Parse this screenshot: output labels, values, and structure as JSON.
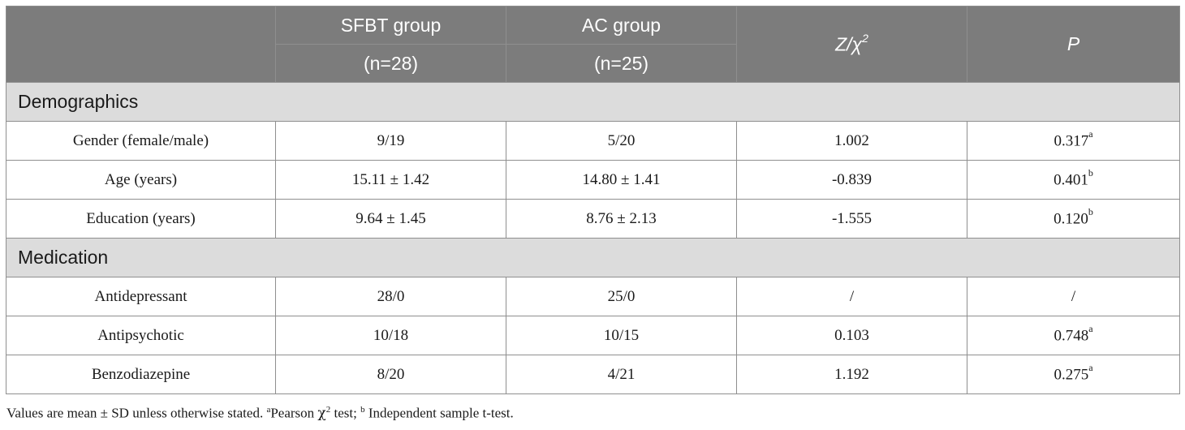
{
  "header": {
    "blank": "",
    "sfbt_title": "SFBT group",
    "sfbt_n": "(n=28)",
    "ac_title": "AC group",
    "ac_n": "(n=25)",
    "stat_main": "Z/χ",
    "stat_sup": "2",
    "p_label": "P"
  },
  "sections": [
    {
      "label": "Demographics",
      "rows": [
        {
          "label": "Gender (female/male)",
          "sfbt": "9/19",
          "ac": "5/20",
          "stat": "1.002",
          "p": "0.317",
          "p_sup": "a"
        },
        {
          "label": "Age (years)",
          "sfbt": "15.11 ± 1.42",
          "ac": "14.80 ± 1.41",
          "stat": "-0.839",
          "p": "0.401",
          "p_sup": "b"
        },
        {
          "label": "Education (years)",
          "sfbt": "9.64 ± 1.45",
          "ac": "8.76 ± 2.13",
          "stat": "-1.555",
          "p": "0.120",
          "p_sup": "b"
        }
      ]
    },
    {
      "label": "Medication",
      "rows": [
        {
          "label": "Antidepressant",
          "sfbt": "28/0",
          "ac": "25/0",
          "stat": "/",
          "p": "/",
          "p_sup": ""
        },
        {
          "label": "Antipsychotic",
          "sfbt": "10/18",
          "ac": "10/15",
          "stat": "0.103",
          "p": "0.748",
          "p_sup": "a"
        },
        {
          "label": "Benzodiazepine",
          "sfbt": "8/20",
          "ac": "4/21",
          "stat": "1.192",
          "p": "0.275",
          "p_sup": "a"
        }
      ]
    }
  ],
  "footnote": {
    "text1": "Values are mean ± SD unless otherwise stated. ",
    "sup_a": "a",
    "text2": "Pearson ",
    "chi": "χ",
    "chi_sup": "2",
    "text3": " test; ",
    "sup_b": "b",
    "text4": " Independent sample t-test."
  }
}
